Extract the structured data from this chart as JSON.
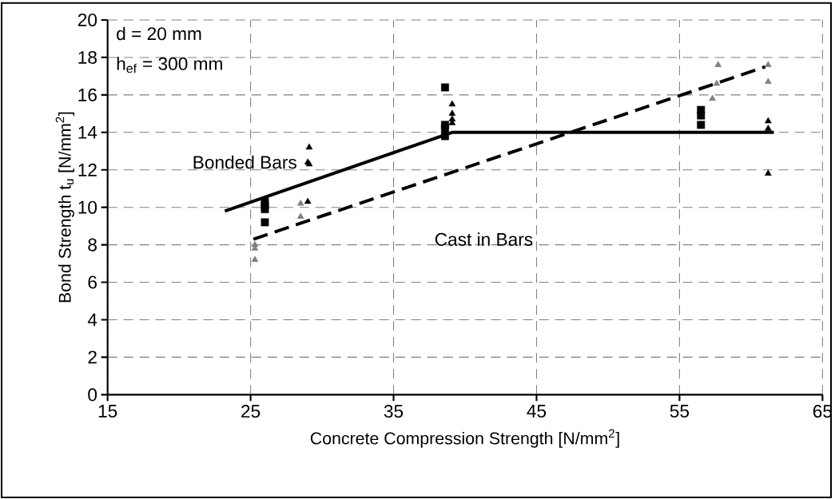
{
  "chart_data": {
    "type": "scatter",
    "xlabel": "Concrete Compression Strength [N/mm$^{2}$]",
    "ylabel": "Bond Strength t$_{u}$ [N/mm$^{2}$]",
    "annotations": [
      "d = 20 mm",
      "h$_{ef}$ = 300 mm"
    ],
    "xlim": [
      15,
      65
    ],
    "xticks": [
      15,
      25,
      35,
      45,
      55,
      65
    ],
    "ylim": [
      0,
      20
    ],
    "yticks": [
      0,
      2,
      4,
      6,
      8,
      10,
      12,
      14,
      16,
      18,
      20
    ],
    "grid": true,
    "series": [
      {
        "marker": "square",
        "color": "#000000",
        "x": [
          26.0,
          26.0,
          26.0,
          26.0,
          38.6,
          38.6,
          38.6,
          38.6,
          56.5,
          56.5,
          56.5
        ],
        "values": [
          10.3,
          10.1,
          9.9,
          9.2,
          16.4,
          14.4,
          14.2,
          13.8,
          15.2,
          14.9,
          14.4
        ]
      },
      {
        "marker": "triangle",
        "color": "#000000",
        "x": [
          29.1,
          29.0,
          29.1,
          29.0,
          39.1,
          39.1,
          39.1,
          39.1,
          61.2,
          61.2,
          61.2
        ],
        "values": [
          13.2,
          12.4,
          12.3,
          10.3,
          15.5,
          15.0,
          14.7,
          14.5,
          14.6,
          14.2,
          11.8
        ]
      },
      {
        "marker": "triangle",
        "color": "#808080",
        "x": [
          25.3,
          25.3,
          25.3,
          28.5,
          28.5,
          57.3,
          57.6,
          57.7,
          61.2,
          61.2
        ],
        "values": [
          8.0,
          7.8,
          7.2,
          10.2,
          9.5,
          15.8,
          16.6,
          17.6,
          17.6,
          16.7
        ]
      },
      {
        "type": "line",
        "name": "Bonded Bars",
        "marker": "none",
        "line_style": "solid",
        "color": "#000000",
        "x": [
          23.2,
          39.1,
          61.6
        ],
        "values": [
          9.8,
          14.0,
          14.0
        ]
      },
      {
        "type": "line",
        "name": "Cast in Bars",
        "marker": "none",
        "line_style": "dashed",
        "color": "#000000",
        "x": [
          25.2,
          61.0
        ],
        "values": [
          8.3,
          17.5
        ]
      }
    ]
  }
}
